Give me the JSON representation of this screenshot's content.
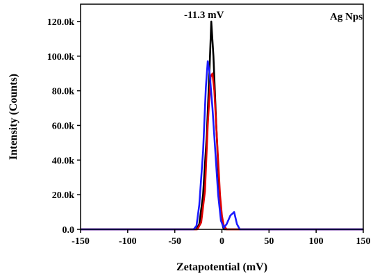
{
  "chart_data": {
    "type": "line",
    "title": "",
    "xlabel": "Zetapotential (mV)",
    "ylabel": "Intensity (Counts)",
    "xlim": [
      -150,
      150
    ],
    "ylim": [
      0,
      130000
    ],
    "x_ticks": [
      -150,
      -100,
      -50,
      0,
      50,
      100,
      150
    ],
    "x_tick_labels": [
      "-150",
      "-100",
      "-50",
      "0",
      "50",
      "100",
      "150"
    ],
    "y_ticks": [
      0,
      20000,
      40000,
      60000,
      80000,
      100000,
      120000
    ],
    "y_tick_labels": [
      "0.0",
      "20.0k",
      "40.0k",
      "60.0k",
      "80.0k",
      "100.0k",
      "120.0k"
    ],
    "grid": false,
    "annotations": [
      {
        "text": "-11.3 mV",
        "x": -19,
        "y": 122000
      },
      {
        "text": "Ag Nps",
        "x": 132,
        "y": 121000
      }
    ],
    "series": [
      {
        "color": "#000000",
        "x": [
          -150,
          -27,
          -24,
          -20,
          -16,
          -13,
          -11.3,
          -9,
          -6,
          -3,
          0,
          2,
          150
        ],
        "y": [
          0,
          0,
          3000,
          20000,
          55000,
          95000,
          120000,
          100000,
          60000,
          25000,
          4000,
          0,
          0
        ]
      },
      {
        "color": "#e00000",
        "x": [
          -150,
          -26,
          -22,
          -18,
          -15,
          -12,
          -10,
          -8,
          -5,
          -2,
          0,
          2,
          5,
          150
        ],
        "y": [
          0,
          0,
          4000,
          22000,
          60000,
          88000,
          90000,
          80000,
          50000,
          20000,
          8000,
          2000,
          0,
          0
        ]
      },
      {
        "color": "#1a1aff",
        "x": [
          -150,
          -30,
          -27,
          -24,
          -20,
          -17,
          -15,
          -13,
          -10,
          -7,
          -4,
          -1,
          2,
          5,
          9,
          13,
          16,
          19,
          150
        ],
        "y": [
          0,
          0,
          2000,
          14000,
          45000,
          82000,
          97000,
          90000,
          70000,
          45000,
          20000,
          5000,
          1000,
          3000,
          8000,
          10000,
          3000,
          0,
          0
        ]
      }
    ]
  }
}
